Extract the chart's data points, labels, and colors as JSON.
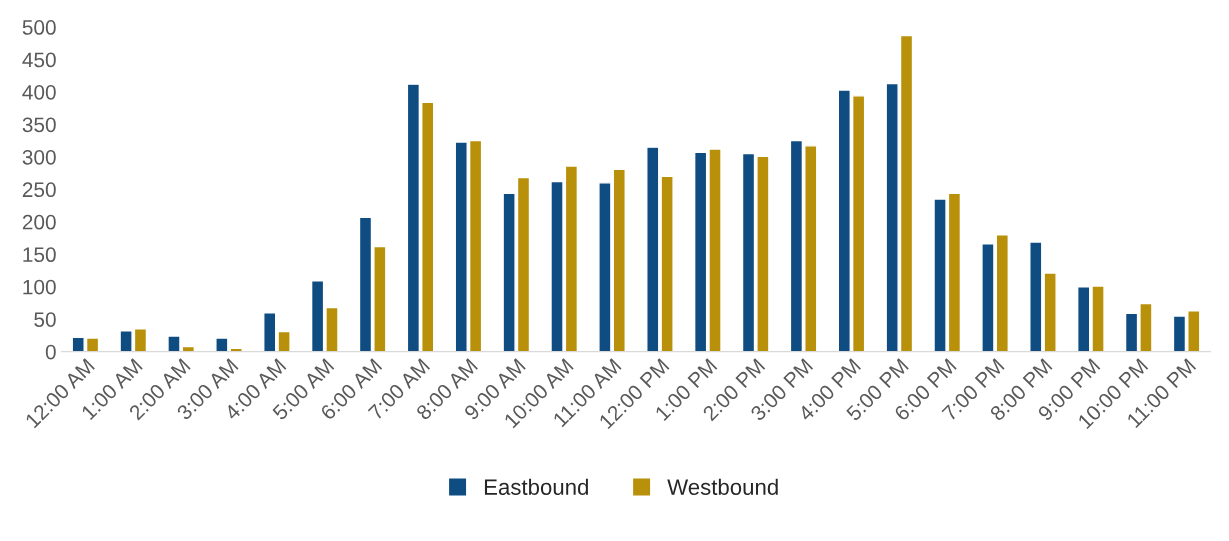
{
  "chart_data": {
    "type": "bar",
    "categories": [
      "12:00 AM",
      "1:00 AM",
      "2:00 AM",
      "3:00 AM",
      "4:00 AM",
      "5:00 AM",
      "6:00 AM",
      "7:00 AM",
      "8:00 AM",
      "9:00 AM",
      "10:00 AM",
      "11:00 AM",
      "12:00 PM",
      "1:00 PM",
      "2:00 PM",
      "3:00 PM",
      "4:00 PM",
      "5:00 PM",
      "6:00 PM",
      "7:00 PM",
      "8:00 PM",
      "9:00 PM",
      "10:00 PM",
      "11:00 PM"
    ],
    "series": [
      {
        "name": "Eastbound",
        "color": "#0f4c81",
        "values": [
          22,
          32,
          24,
          21,
          60,
          109,
          207,
          412,
          323,
          244,
          262,
          260,
          315,
          307,
          305,
          325,
          403,
          413,
          235,
          166,
          169,
          100,
          59,
          55
        ]
      },
      {
        "name": "Westbound",
        "color": "#b8900a",
        "values": [
          21,
          35,
          8,
          5,
          31,
          68,
          162,
          384,
          325,
          268,
          286,
          281,
          270,
          312,
          301,
          317,
          394,
          487,
          244,
          180,
          121,
          101,
          74,
          63
        ]
      }
    ],
    "ylim": [
      0,
      500
    ],
    "yticks": [
      0,
      50,
      100,
      150,
      200,
      250,
      300,
      350,
      400,
      450,
      500
    ],
    "grid": false,
    "legend": "bottom"
  }
}
